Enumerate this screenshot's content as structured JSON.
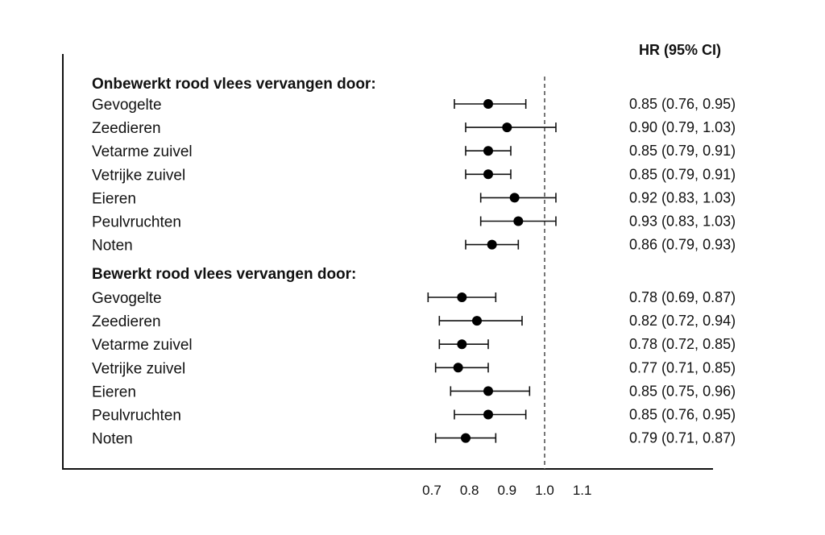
{
  "column_header": "HR (95% CI)",
  "chart_data": {
    "type": "forest",
    "reference_value": 1.0,
    "xlim": [
      0.7,
      1.1
    ],
    "ticks": [
      "0.7",
      "0.8",
      "0.9",
      "1.0",
      "1.1"
    ],
    "tick_values": [
      0.7,
      0.8,
      0.9,
      1.0,
      1.1
    ],
    "groups": [
      {
        "title": "Onbewerkt rood vlees vervangen door:",
        "rows": [
          {
            "label": "Gevogelte",
            "hr": 0.85,
            "lo": 0.76,
            "hi": 0.95,
            "text": "0.85 (0.76, 0.95)"
          },
          {
            "label": "Zeedieren",
            "hr": 0.9,
            "lo": 0.79,
            "hi": 1.03,
            "text": "0.90 (0.79, 1.03)"
          },
          {
            "label": "Vetarme zuivel",
            "hr": 0.85,
            "lo": 0.79,
            "hi": 0.91,
            "text": "0.85 (0.79, 0.91)"
          },
          {
            "label": "Vetrijke zuivel",
            "hr": 0.85,
            "lo": 0.79,
            "hi": 0.91,
            "text": "0.85 (0.79, 0.91)"
          },
          {
            "label": "Eieren",
            "hr": 0.92,
            "lo": 0.83,
            "hi": 1.03,
            "text": "0.92 (0.83, 1.03)"
          },
          {
            "label": "Peulvruchten",
            "hr": 0.93,
            "lo": 0.83,
            "hi": 1.03,
            "text": "0.93 (0.83, 1.03)"
          },
          {
            "label": "Noten",
            "hr": 0.86,
            "lo": 0.79,
            "hi": 0.93,
            "text": "0.86 (0.79, 0.93)"
          }
        ]
      },
      {
        "title": "Bewerkt rood vlees vervangen door:",
        "rows": [
          {
            "label": "Gevogelte",
            "hr": 0.78,
            "lo": 0.69,
            "hi": 0.87,
            "text": "0.78 (0.69, 0.87)"
          },
          {
            "label": "Zeedieren",
            "hr": 0.82,
            "lo": 0.72,
            "hi": 0.94,
            "text": "0.82 (0.72, 0.94)"
          },
          {
            "label": "Vetarme zuivel",
            "hr": 0.78,
            "lo": 0.72,
            "hi": 0.85,
            "text": "0.78 (0.72, 0.85)"
          },
          {
            "label": "Vetrijke zuivel",
            "hr": 0.77,
            "lo": 0.71,
            "hi": 0.85,
            "text": "0.77 (0.71, 0.85)"
          },
          {
            "label": "Eieren",
            "hr": 0.85,
            "lo": 0.75,
            "hi": 0.96,
            "text": "0.85 (0.75, 0.96)"
          },
          {
            "label": "Peulvruchten",
            "hr": 0.85,
            "lo": 0.76,
            "hi": 0.95,
            "text": "0.85 (0.76, 0.95)"
          },
          {
            "label": "Noten",
            "hr": 0.79,
            "lo": 0.71,
            "hi": 0.87,
            "text": "0.79 (0.71, 0.87)"
          }
        ]
      }
    ],
    "colors": {
      "marker": "#000000",
      "line": "#111111",
      "reference_line": "#555555"
    }
  }
}
